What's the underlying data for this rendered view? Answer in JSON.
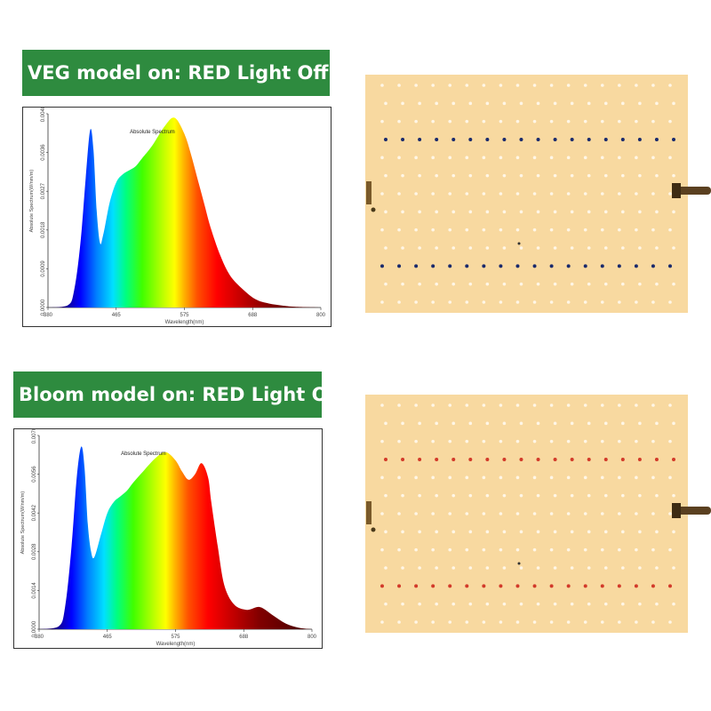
{
  "charts": [
    {
      "banner": "VEG model on: RED Light Off",
      "chart_data": {
        "type": "area",
        "title": "Absolute Spectrum",
        "xlabel": "Wavelength(nm)",
        "ylabel": "Absolute Spectrum(W/nm/m)",
        "xlim": [
          380,
          800
        ],
        "ylim": [
          0,
          0.0048
        ],
        "x_ticks": [
          "380",
          "465",
          "575",
          "688",
          "800"
        ],
        "y_ticks": [
          "0.0000",
          "0.0009",
          "0.0018",
          "0.0027",
          "0.0036",
          "0.0048"
        ],
        "x": [
          380,
          410,
          420,
          430,
          438,
          445,
          450,
          455,
          460,
          465,
          475,
          485,
          495,
          505,
          515,
          525,
          540,
          560,
          575,
          590,
          600,
          610,
          620,
          630,
          645,
          660,
          680,
          700,
          720,
          740,
          760,
          800
        ],
        "values": [
          0,
          5e-05,
          0.0004,
          0.0016,
          0.0032,
          0.0044,
          0.0039,
          0.0024,
          0.0016,
          0.0018,
          0.0026,
          0.0031,
          0.0033,
          0.0034,
          0.0035,
          0.0037,
          0.004,
          0.0045,
          0.0047,
          0.0043,
          0.0038,
          0.0032,
          0.0026,
          0.002,
          0.0013,
          0.0008,
          0.00045,
          0.0002,
          0.0001,
          5e-05,
          2e-05,
          0
        ]
      }
    },
    {
      "banner": "Bloom model on: RED Light On",
      "chart_data": {
        "type": "area",
        "title": "Absolute Spectrum",
        "xlabel": "Wavelength(nm)",
        "ylabel": "Absolute Spectrum(W/nm/m)",
        "xlim": [
          380,
          800
        ],
        "ylim": [
          0,
          0.007
        ],
        "x_ticks": [
          "380",
          "465",
          "575",
          "688",
          "800"
        ],
        "y_ticks": [
          "0.0000",
          "0.0014",
          "0.0028",
          "0.0042",
          "0.0056",
          "0.0070"
        ],
        "x": [
          380,
          410,
          420,
          430,
          438,
          445,
          450,
          455,
          460,
          465,
          475,
          485,
          495,
          505,
          515,
          525,
          540,
          560,
          575,
          590,
          600,
          610,
          620,
          630,
          640,
          645,
          655,
          665,
          680,
          700,
          720,
          740,
          760,
          780,
          800
        ],
        "values": [
          0,
          0.0001,
          0.0008,
          0.003,
          0.0055,
          0.0066,
          0.0058,
          0.0038,
          0.0028,
          0.0026,
          0.0034,
          0.0042,
          0.0046,
          0.0048,
          0.005,
          0.0053,
          0.0057,
          0.0062,
          0.0064,
          0.0061,
          0.0057,
          0.0054,
          0.0056,
          0.006,
          0.0055,
          0.0046,
          0.003,
          0.0016,
          0.0009,
          0.0007,
          0.0008,
          0.0005,
          0.0002,
          5e-05,
          0
        ]
      }
    }
  ],
  "boards": [
    {
      "special_row_color": "#1a2a6c",
      "board_color": "#f8d9a0",
      "led_color": "#fff6e6"
    },
    {
      "special_row_color": "#d23a2a",
      "board_color": "#f8d9a0",
      "led_color": "#fff6e6"
    }
  ]
}
